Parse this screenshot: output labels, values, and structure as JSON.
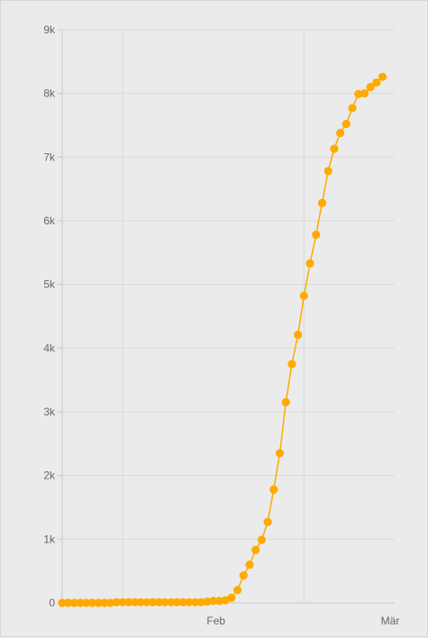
{
  "chart_data": {
    "type": "line",
    "title": "",
    "xlabel": "",
    "ylabel": "",
    "ylim": [
      0,
      9000
    ],
    "y_ticks": [
      0,
      1000,
      2000,
      3000,
      4000,
      5000,
      6000,
      7000,
      8000,
      9000
    ],
    "y_tick_labels": [
      "0",
      "1k",
      "2k",
      "3k",
      "4k",
      "5k",
      "6k",
      "7k",
      "8k",
      "9k"
    ],
    "x_ticks": [
      {
        "day": 31,
        "label": "Feb"
      },
      {
        "day": 60,
        "label": "Mär"
      }
    ],
    "x_grid_days": [
      10,
      40
    ],
    "xlim": [
      0,
      55
    ],
    "grid": true,
    "legend": "none",
    "colors": {
      "series": "#ffaa00",
      "grid": "#d9d9d9",
      "label": "#666666"
    },
    "series": [
      {
        "values": [
          0,
          0,
          0,
          0,
          0,
          0,
          0,
          0,
          0,
          10,
          10,
          10,
          10,
          10,
          10,
          10,
          10,
          10,
          10,
          10,
          10,
          10,
          10,
          10,
          20,
          30,
          30,
          40,
          80,
          200,
          430,
          600,
          830,
          990,
          1270,
          1780,
          2350,
          3150,
          3750,
          4210,
          4820,
          5330,
          5780,
          6280,
          6780,
          7130,
          7380,
          7520,
          7770,
          7990,
          8000,
          8100,
          8170,
          8260
        ]
      }
    ]
  }
}
